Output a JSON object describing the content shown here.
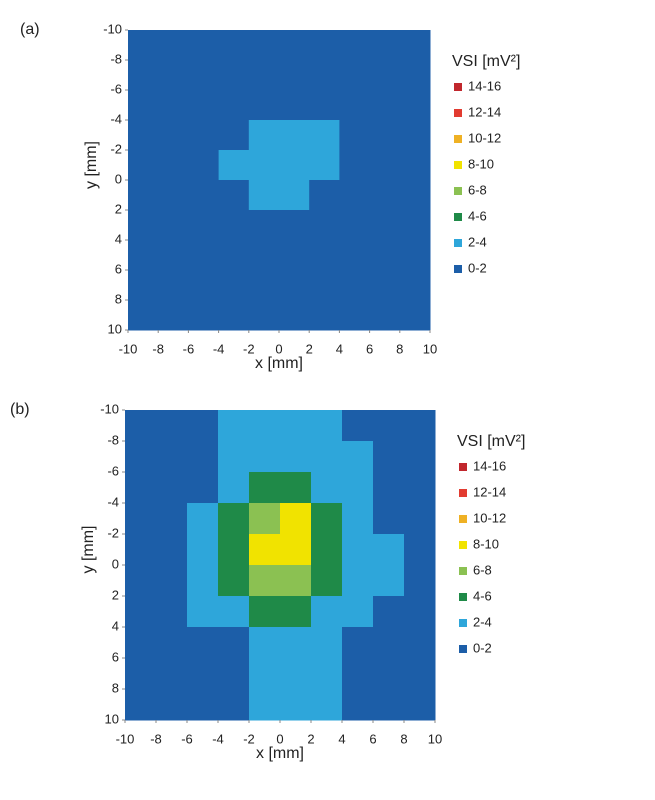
{
  "chart_data": [
    {
      "type": "heatmap",
      "panel_label": "(a)",
      "xlabel": "x [mm]",
      "ylabel": "y [mm]",
      "legend_title": "VSI [mV²]",
      "xlim": [
        -10,
        10
      ],
      "ylim": [
        -10,
        10
      ],
      "y_inverted": true,
      "xticks": [
        -10,
        -8,
        -6,
        -4,
        -2,
        0,
        2,
        4,
        6,
        8,
        10
      ],
      "yticks": [
        -10,
        -8,
        -6,
        -4,
        -2,
        0,
        2,
        4,
        6,
        8,
        10
      ],
      "x": [
        -9,
        -7,
        -5,
        -3,
        -1,
        1,
        3,
        5,
        7,
        9
      ],
      "y": [
        -9,
        -7,
        -5,
        -3,
        -1,
        1,
        3,
        5,
        7,
        9
      ],
      "z": [
        [
          1.5,
          1.8,
          1.5,
          1.5,
          1.8,
          1.5,
          1.5,
          1.8,
          1.5,
          1.5
        ],
        [
          1.5,
          1.5,
          1.8,
          1.5,
          1.5,
          1.8,
          1.5,
          1.5,
          1.8,
          1.5
        ],
        [
          1.8,
          1.5,
          1.5,
          1.2,
          1.5,
          1.5,
          1.8,
          1.5,
          1.5,
          1.5
        ],
        [
          1.5,
          1.5,
          1.2,
          1.5,
          2.5,
          2.6,
          2.3,
          1.8,
          1.5,
          1.5
        ],
        [
          1.5,
          1.8,
          1.0,
          2.2,
          2.6,
          2.7,
          2.4,
          1.5,
          1.5,
          1.8
        ],
        [
          1.5,
          1.5,
          1.0,
          1.2,
          2.4,
          2.5,
          1.2,
          1.5,
          1.8,
          1.5
        ],
        [
          1.8,
          1.5,
          1.2,
          1.5,
          1.5,
          1.2,
          1.5,
          1.8,
          1.5,
          1.5
        ],
        [
          1.5,
          1.5,
          1.5,
          1.0,
          1.5,
          1.5,
          1.0,
          1.5,
          1.5,
          1.8
        ],
        [
          1.5,
          1.8,
          1.5,
          1.0,
          1.0,
          1.0,
          1.0,
          1.2,
          1.5,
          1.5
        ],
        [
          1.5,
          1.5,
          1.8,
          1.0,
          1.0,
          1.2,
          1.5,
          1.5,
          1.8,
          1.5
        ]
      ],
      "levels": [
        0,
        2,
        4,
        6,
        8,
        10,
        12,
        14,
        16
      ],
      "level_labels": [
        "0-2",
        "2-4",
        "4-6",
        "6-8",
        "8-10",
        "10-12",
        "12-14",
        "14-16"
      ],
      "colors": [
        "#1c5ea8",
        "#2ea6da",
        "#1f8a48",
        "#8bc152",
        "#f1e300",
        "#efb124",
        "#e23b30",
        "#c1272d"
      ]
    },
    {
      "type": "heatmap",
      "panel_label": "(b)",
      "xlabel": "x [mm]",
      "ylabel": "y [mm]",
      "legend_title": "VSI [mV²]",
      "xlim": [
        -10,
        10
      ],
      "ylim": [
        -10,
        10
      ],
      "y_inverted": true,
      "xticks": [
        -10,
        -8,
        -6,
        -4,
        -2,
        0,
        2,
        4,
        6,
        8,
        10
      ],
      "yticks": [
        -10,
        -8,
        -6,
        -4,
        -2,
        0,
        2,
        4,
        6,
        8,
        10
      ],
      "x": [
        -9,
        -7,
        -5,
        -3,
        -1,
        1,
        3,
        5,
        7,
        9
      ],
      "y": [
        -9,
        -7,
        -5,
        -3,
        -1,
        1,
        3,
        5,
        7,
        9
      ],
      "z": [
        [
          1.0,
          1.5,
          1.8,
          2.5,
          2.6,
          2.5,
          2.3,
          1.5,
          1.2,
          1.0
        ],
        [
          1.0,
          1.2,
          1.8,
          2.8,
          3.0,
          3.0,
          2.8,
          2.5,
          1.5,
          1.0
        ],
        [
          1.0,
          1.0,
          1.5,
          3.0,
          4.5,
          4.8,
          3.5,
          2.8,
          1.6,
          1.0
        ],
        [
          1.5,
          1.0,
          2.5,
          5.0,
          7.0,
          8.5,
          5.0,
          3.0,
          1.5,
          1.2
        ],
        [
          1.0,
          1.0,
          2.6,
          5.5,
          9.0,
          9.5,
          5.5,
          3.0,
          2.0,
          1.5
        ],
        [
          1.0,
          1.0,
          2.5,
          5.0,
          7.0,
          6.5,
          4.5,
          3.0,
          2.0,
          1.5
        ],
        [
          1.5,
          1.5,
          2.0,
          3.0,
          4.5,
          4.2,
          2.8,
          2.5,
          1.5,
          1.5
        ],
        [
          1.5,
          1.2,
          1.5,
          1.8,
          2.8,
          3.0,
          2.5,
          1.8,
          1.5,
          1.5
        ],
        [
          1.0,
          1.5,
          1.2,
          1.5,
          2.6,
          2.8,
          2.4,
          1.5,
          1.2,
          1.0
        ],
        [
          1.0,
          1.0,
          1.5,
          1.5,
          2.3,
          2.5,
          2.0,
          1.5,
          1.0,
          1.0
        ]
      ],
      "levels": [
        0,
        2,
        4,
        6,
        8,
        10,
        12,
        14,
        16
      ],
      "level_labels": [
        "0-2",
        "2-4",
        "4-6",
        "6-8",
        "8-10",
        "10-12",
        "12-14",
        "14-16"
      ],
      "colors": [
        "#1c5ea8",
        "#2ea6da",
        "#1f8a48",
        "#8bc152",
        "#f1e300",
        "#efb124",
        "#e23b30",
        "#c1272d"
      ]
    }
  ]
}
